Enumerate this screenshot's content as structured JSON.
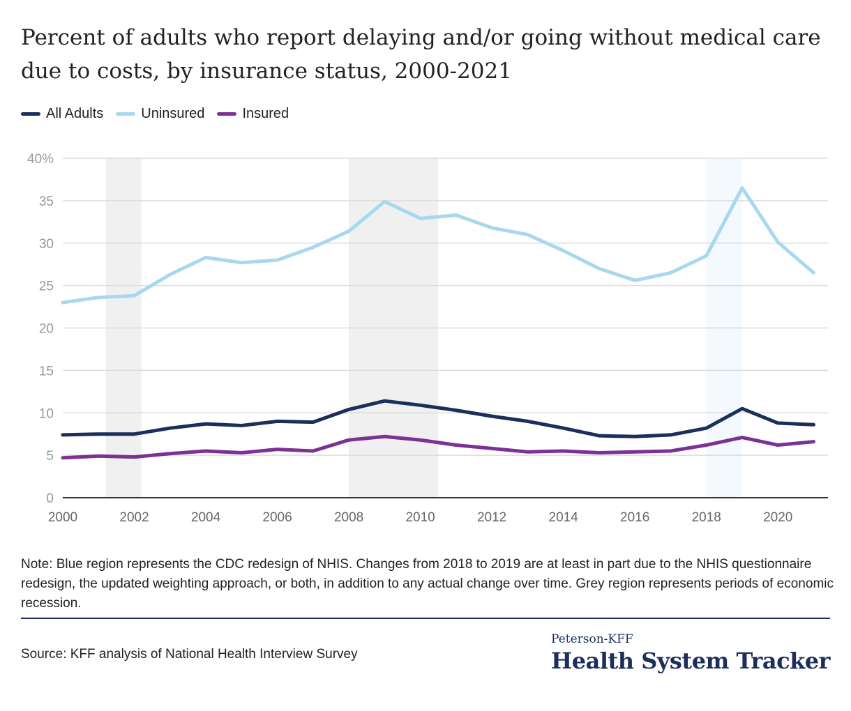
{
  "title": "Percent of adults who report delaying and/or going without medical care due to costs, by insurance status, 2000-2021",
  "note": "Note: Blue region represents the CDC redesign of NHIS. Changes from 2018 to 2019 are at least in part due to the NHIS questionnaire redesign, the updated weighting approach, or both, in addition to any actual change over time. Grey region represents periods of economic recession.",
  "source": "Source: KFF analysis of National Health Interview Survey",
  "brand": {
    "top": "Peterson-KFF",
    "main": "Health System Tracker"
  },
  "colors": {
    "all_adults": "#1c2e5c",
    "uninsured": "#a8d8f0",
    "insured": "#7b3294",
    "recession": "#f0f0f0",
    "redesign": "#f3f9fd",
    "grid": "#dddddd",
    "axis": "#333333",
    "tick_text": "#999999"
  },
  "chart_data": {
    "type": "line",
    "x": [
      2000,
      2001,
      2002,
      2003,
      2004,
      2005,
      2006,
      2007,
      2008,
      2009,
      2010,
      2011,
      2012,
      2013,
      2014,
      2015,
      2016,
      2017,
      2018,
      2019,
      2020,
      2021
    ],
    "series": [
      {
        "name": "All Adults",
        "color": "#1c2e5c",
        "values": [
          7.4,
          7.5,
          7.5,
          8.2,
          8.7,
          8.5,
          9.0,
          8.9,
          10.4,
          11.4,
          10.9,
          10.3,
          9.6,
          9.0,
          8.2,
          7.3,
          7.2,
          7.4,
          8.2,
          10.5,
          8.8,
          8.6
        ]
      },
      {
        "name": "Uninsured",
        "color": "#a8d8f0",
        "values": [
          23.0,
          23.6,
          23.8,
          26.3,
          28.3,
          27.7,
          28.0,
          29.5,
          31.4,
          34.9,
          32.9,
          33.3,
          31.8,
          31.0,
          29.1,
          27.0,
          25.6,
          26.5,
          28.5,
          36.5,
          30.1,
          26.5
        ]
      },
      {
        "name": "Insured",
        "color": "#7b3294",
        "values": [
          4.7,
          4.9,
          4.8,
          5.2,
          5.5,
          5.3,
          5.7,
          5.5,
          6.8,
          7.2,
          6.8,
          6.2,
          5.8,
          5.4,
          5.5,
          5.3,
          5.4,
          5.5,
          6.2,
          7.1,
          6.2,
          6.6
        ]
      }
    ],
    "xticks": [
      2000,
      2002,
      2004,
      2006,
      2008,
      2010,
      2012,
      2014,
      2016,
      2018,
      2020
    ],
    "xtick_labels": [
      "2000",
      "2002",
      "2004",
      "2006",
      "2008",
      "2010",
      "2012",
      "2014",
      "2016",
      "2018",
      "2020"
    ],
    "yticks": [
      0,
      5,
      10,
      15,
      20,
      25,
      30,
      35,
      40
    ],
    "ytick_labels": [
      "0",
      "5",
      "10",
      "15",
      "20",
      "25",
      "30",
      "35",
      "40%"
    ],
    "xlim": [
      2000,
      2021.4
    ],
    "ylim": [
      0,
      40
    ],
    "grid": true,
    "legend": "top-left",
    "recession_periods": [
      [
        2001.2,
        2002.2
      ],
      [
        2008.0,
        2010.5
      ]
    ],
    "redesign_period": [
      2018.0,
      2019.0
    ]
  }
}
